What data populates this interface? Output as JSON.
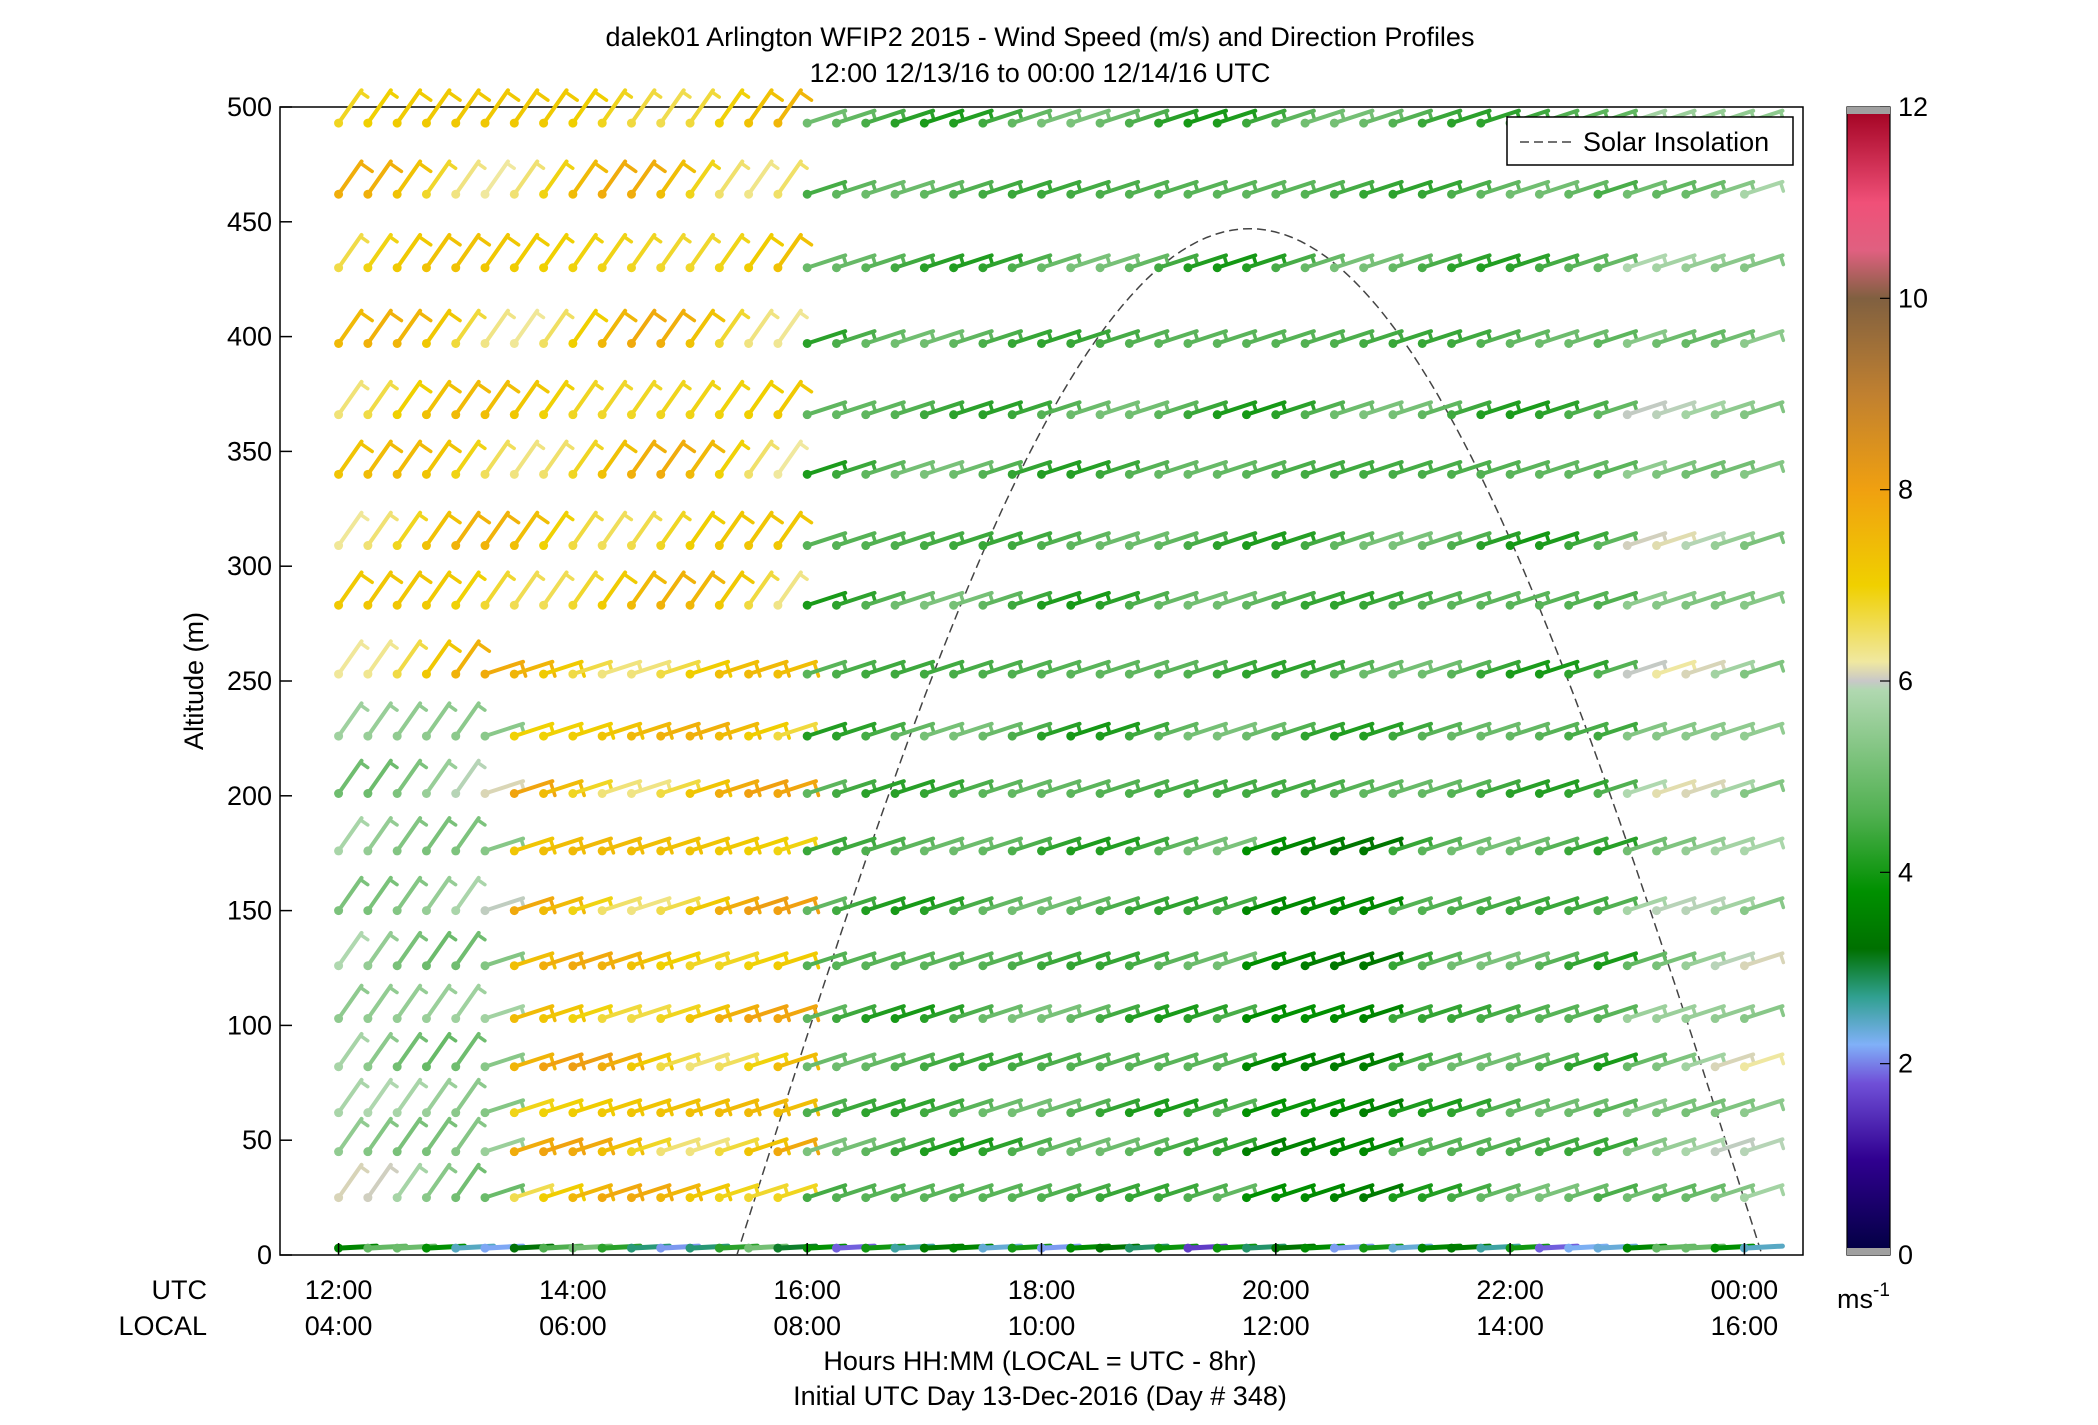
{
  "chart_data": {
    "type": "wind-barb-profile",
    "title": "dalek01 Arlington WFIP2 2015 - Wind Speed (m/s) and Direction Profiles",
    "subtitle": "12:00 12/13/16 to 00:00 12/14/16  UTC",
    "ylabel": "Altitude (m)",
    "xlabel": "Hours HH:MM  (LOCAL = UTC - 8hr)",
    "xlabel2": "Initial UTC Day 13-Dec-2016 (Day # 348)",
    "row_label_utc": "UTC",
    "row_label_local": "LOCAL",
    "x_range_hours_utc": [
      11.5,
      24.5
    ],
    "ylim": [
      0,
      500
    ],
    "y_ticks": [
      "0",
      "50",
      "100",
      "150",
      "200",
      "250",
      "300",
      "350",
      "400",
      "450",
      "500"
    ],
    "x_ticks_utc": [
      "12:00",
      "14:00",
      "16:00",
      "18:00",
      "20:00",
      "22:00",
      "00:00"
    ],
    "x_ticks_local": [
      "04:00",
      "06:00",
      "08:00",
      "10:00",
      "12:00",
      "14:00",
      "16:00"
    ],
    "legend": {
      "label": "Solar Insolation",
      "position": "top-right"
    },
    "solar_insolation": {
      "start_hour_utc": 15.4,
      "end_hour_utc": 24.15,
      "peak_hour_utc": 19.8,
      "peak_altitude_m": 447
    },
    "colorbar": {
      "unit": "ms",
      "unit_exp": "-1",
      "range": [
        0,
        12
      ],
      "ticks": [
        "0",
        "2",
        "4",
        "6",
        "8",
        "10",
        "12"
      ],
      "stops": [
        {
          "v": 0,
          "c": "#000040"
        },
        {
          "v": 1,
          "c": "#300090"
        },
        {
          "v": 1.8,
          "c": "#7050d8"
        },
        {
          "v": 2.2,
          "c": "#80b0f8"
        },
        {
          "v": 2.7,
          "c": "#30a090"
        },
        {
          "v": 3.2,
          "c": "#007000"
        },
        {
          "v": 3.8,
          "c": "#009000"
        },
        {
          "v": 4.6,
          "c": "#50b050"
        },
        {
          "v": 5.9,
          "c": "#b0d8b0"
        },
        {
          "v": 6.0,
          "c": "#c8c8c8"
        },
        {
          "v": 6.2,
          "c": "#f0e8a0"
        },
        {
          "v": 7.0,
          "c": "#f0d000"
        },
        {
          "v": 8.0,
          "c": "#f0a010"
        },
        {
          "v": 9.0,
          "c": "#c08030"
        },
        {
          "v": 10.0,
          "c": "#806040"
        },
        {
          "v": 10.5,
          "c": "#e06080"
        },
        {
          "v": 11.0,
          "c": "#f05078"
        },
        {
          "v": 12.0,
          "c": "#a00020"
        }
      ]
    },
    "barb_grid": {
      "altitudes_m": [
        25,
        45,
        62,
        82,
        103,
        126,
        150,
        176,
        201,
        226,
        253,
        283,
        309,
        340,
        366,
        397,
        430,
        462,
        493
      ],
      "time_start_hour_utc": 12.0,
      "time_step_hours": 0.25,
      "time_count": 49,
      "surface_altitude_m": 3,
      "surface_wind_direction_deg": 270
    }
  }
}
